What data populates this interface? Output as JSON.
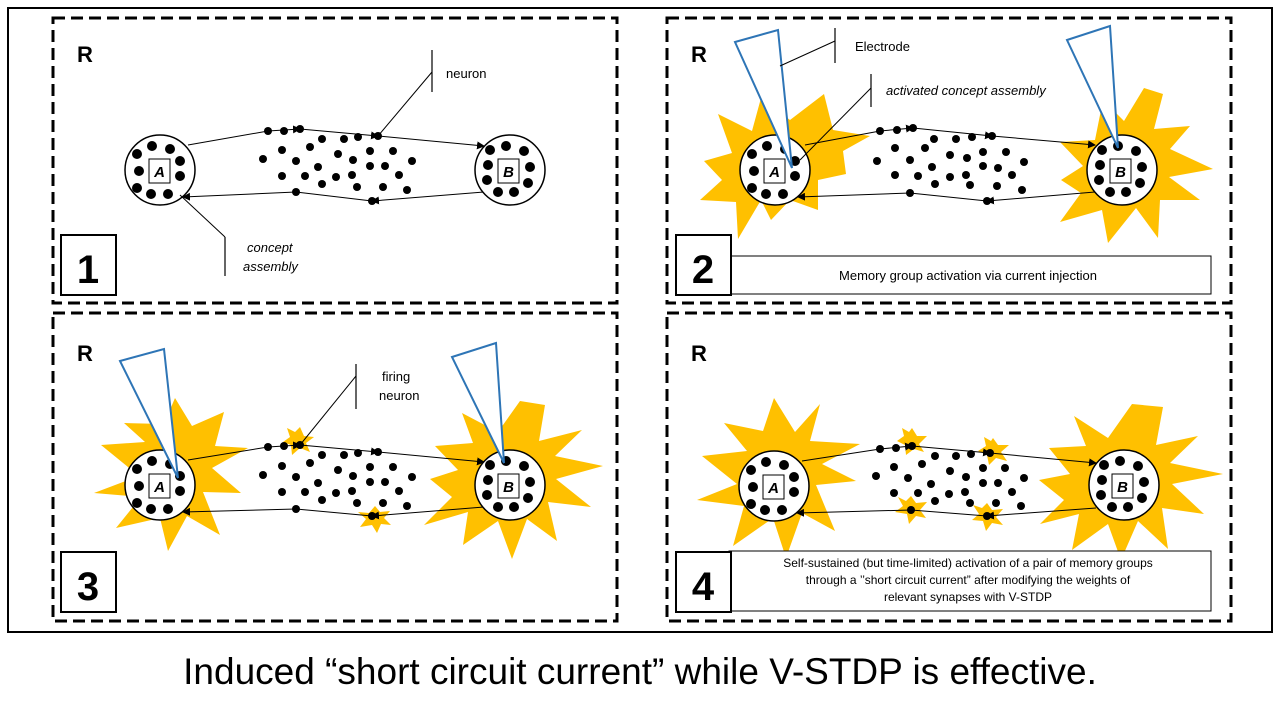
{
  "panels": [
    {
      "label": "R",
      "number": "1",
      "annotations": [
        "neuron",
        "concept",
        "assembly"
      ],
      "concept_left": "A",
      "concept_right": "B"
    },
    {
      "label": "R",
      "number": "2",
      "annotations": [
        "Electrode",
        "activated concept assembly"
      ],
      "concept_left": "A",
      "concept_right": "B",
      "caption": "Memory group activation via current injection"
    },
    {
      "label": "R",
      "number": "3",
      "annotations": [
        "firing",
        "neuron"
      ],
      "concept_left": "A",
      "concept_right": "B"
    },
    {
      "label": "R",
      "number": "4",
      "concept_left": "A",
      "concept_right": "B",
      "caption_lines": [
        "Self-sustained (but time-limited) activation of a pair of memory groups",
        "through a ’’short circuit current” after modifying the weights of",
        "relevant synapses with V-STDP"
      ]
    }
  ],
  "footer": {
    "caption": "Induced “short circuit current” while V-STDP is effective."
  },
  "colors": {
    "starburst": "#FFC000",
    "electrode": "#2E75B6",
    "neuron": "#000000"
  },
  "icon_names": [
    "electrode-icon",
    "starburst-icon",
    "neuron-dot-icon"
  ]
}
